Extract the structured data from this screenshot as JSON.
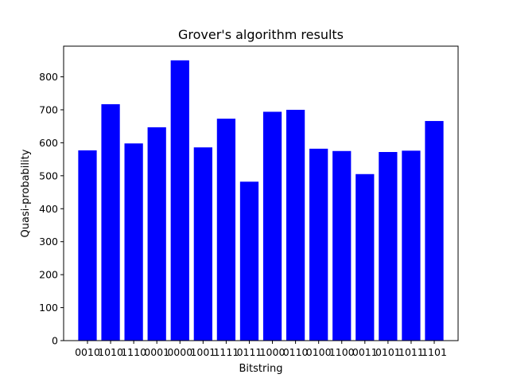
{
  "chart_data": {
    "type": "bar",
    "title": "Grover's algorithm results",
    "xlabel": "Bitstring",
    "ylabel": "Quasi-probability",
    "categories": [
      "0010",
      "1010",
      "1110",
      "0001",
      "0000",
      "1001",
      "1111",
      "0111",
      "1000",
      "0110",
      "0100",
      "1100",
      "0011",
      "0101",
      "1011",
      "1101"
    ],
    "values": [
      577,
      717,
      598,
      647,
      850,
      586,
      673,
      482,
      694,
      700,
      582,
      575,
      505,
      572,
      576,
      666
    ],
    "ylim": [
      0,
      893
    ],
    "yticks": [
      0,
      100,
      200,
      300,
      400,
      500,
      600,
      700,
      800
    ],
    "bar_color": "#0000ff",
    "grid": false,
    "legend": "none"
  }
}
